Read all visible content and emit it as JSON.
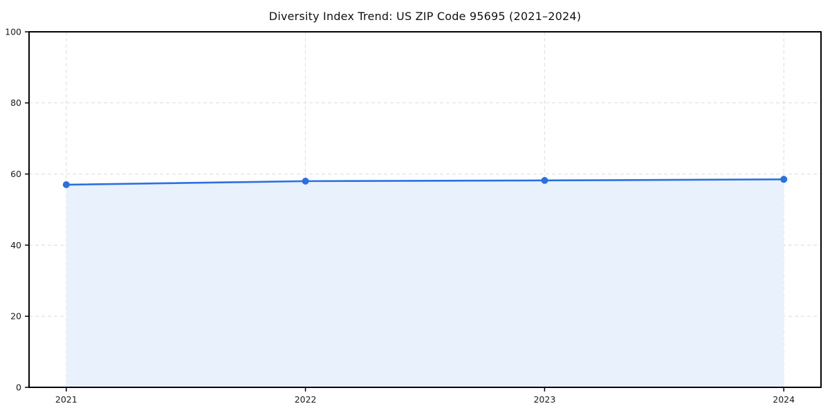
{
  "title": "Diversity Index Trend: US ZIP Code 95695 (2021–2024)",
  "chart_data": {
    "type": "line",
    "title": "Diversity Index Trend: US ZIP Code 95695 (2021–2024)",
    "categories": [
      "2021",
      "2022",
      "2023",
      "2024"
    ],
    "series": [
      {
        "name": "Diversity Index",
        "values": [
          57.0,
          58.0,
          58.2,
          58.5
        ]
      }
    ],
    "xlabel": "",
    "ylabel": "",
    "ylim": [
      0,
      100
    ],
    "yticks": [
      0,
      20,
      40,
      60,
      80,
      100
    ],
    "grid": true,
    "grid_style": "dashed",
    "legend_position": "none",
    "area_fill": true,
    "marker": "circle",
    "colors": {
      "line": "#2a70e2",
      "marker": "#2a70e2",
      "area_fill": "#e9f1fd",
      "grid": "#dcdcdc",
      "spine": "#000000",
      "tick_text": "#1a1a1a"
    }
  }
}
